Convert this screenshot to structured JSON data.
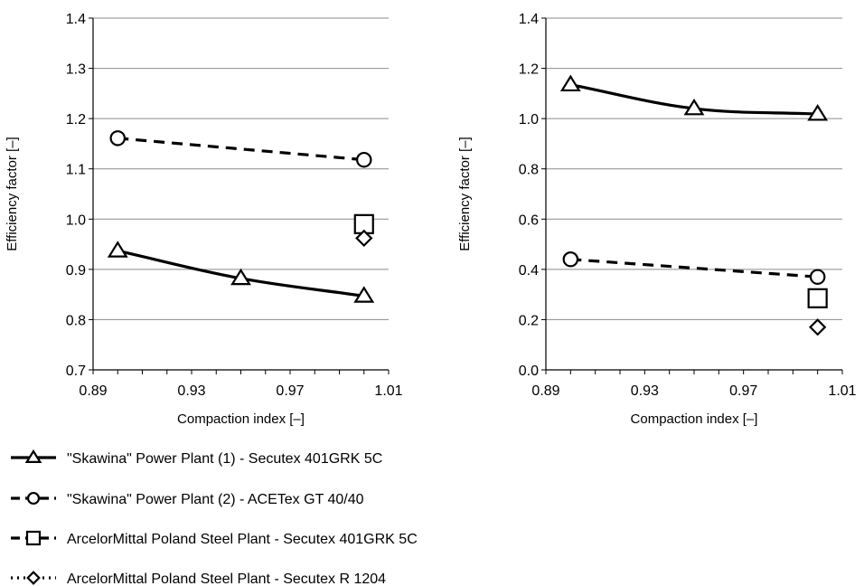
{
  "chart_data": [
    {
      "type": "line",
      "xlabel": "Compaction index [–]",
      "ylabel": "Efficiency factor [–]",
      "xlim": [
        0.89,
        1.01
      ],
      "ylim": [
        0.7,
        1.4
      ],
      "xticks": [
        "0.89",
        "0.93",
        "0.97",
        "1.01"
      ],
      "yticks": [
        "0.7",
        "0.8",
        "0.9",
        "1.0",
        "1.1",
        "1.2",
        "1.3",
        "1.4"
      ],
      "grid": "horizontal",
      "series": [
        {
          "name": "\"Skawina\" Power Plant (1) - Secutex 401GRK 5C",
          "marker": "triangle",
          "line": "solid",
          "points": [
            [
              0.9,
              0.937
            ],
            [
              0.95,
              0.882
            ],
            [
              1.0,
              0.847
            ]
          ]
        },
        {
          "name": "\"Skawina\" Power Plant (2) - ACETex GT 40/40",
          "marker": "circle",
          "line": "dashed",
          "points": [
            [
              0.9,
              1.161
            ],
            [
              1.0,
              1.118
            ]
          ]
        },
        {
          "name": "ArcelorMittal Poland Steel Plant - Secutex 401GRK 5C",
          "marker": "square",
          "line": "dashed",
          "points": [
            [
              1.0,
              0.99
            ]
          ]
        },
        {
          "name": "ArcelorMittal Poland Steel Plant - Secutex R 1204",
          "marker": "diamond",
          "line": "dotted",
          "points": [
            [
              1.0,
              0.962
            ]
          ]
        }
      ]
    },
    {
      "type": "line",
      "xlabel": "Compaction index [–]",
      "ylabel": "Efficiency factor [–]",
      "xlim": [
        0.89,
        1.01
      ],
      "ylim": [
        0.0,
        1.4
      ],
      "xticks": [
        "0.89",
        "0.93",
        "0.97",
        "1.01"
      ],
      "yticks": [
        "0.0",
        "0.2",
        "0.4",
        "0.6",
        "0.8",
        "1.0",
        "1.2",
        "1.4"
      ],
      "grid": "horizontal",
      "series": [
        {
          "name": "\"Skawina\" Power Plant (1) - Secutex 401GRK 5C",
          "marker": "triangle",
          "line": "solid",
          "points": [
            [
              0.9,
              1.135
            ],
            [
              0.95,
              1.04
            ],
            [
              1.0,
              1.018
            ]
          ]
        },
        {
          "name": "\"Skawina\" Power Plant (2) - ACETex GT 40/40",
          "marker": "circle",
          "line": "dashed",
          "points": [
            [
              0.9,
              0.44
            ],
            [
              1.0,
              0.37
            ]
          ]
        },
        {
          "name": "ArcelorMittal Poland Steel Plant - Secutex 401GRK 5C",
          "marker": "square",
          "line": "dashed",
          "points": [
            [
              1.0,
              0.285
            ]
          ]
        },
        {
          "name": "ArcelorMittal Poland Steel Plant - Secutex R 1204",
          "marker": "diamond",
          "line": "dotted",
          "points": [
            [
              1.0,
              0.17
            ]
          ]
        }
      ]
    }
  ],
  "legend": [
    {
      "label": "\"Skawina\" Power Plant (1) - Secutex 401GRK 5C",
      "marker": "triangle",
      "line": "solid"
    },
    {
      "label": "\"Skawina\" Power Plant (2) - ACETex GT 40/40",
      "marker": "circle",
      "line": "dashed"
    },
    {
      "label": "ArcelorMittal Poland Steel Plant - Secutex 401GRK 5C",
      "marker": "square",
      "line": "dashed"
    },
    {
      "label": "ArcelorMittal Poland Steel Plant - Secutex R 1204",
      "marker": "diamond",
      "line": "dotted"
    }
  ],
  "colors": {
    "ink": "#000000",
    "grid": "#8c8c8c",
    "marker_fill": "#ffffff"
  }
}
